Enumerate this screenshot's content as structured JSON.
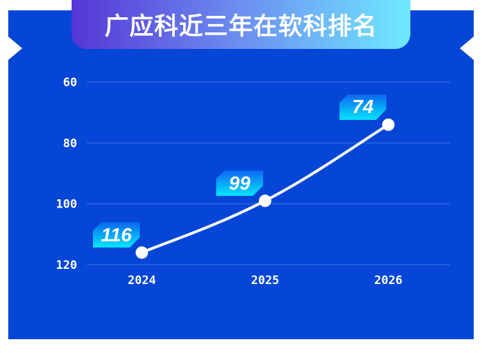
{
  "title": "广应科近三年在软科排名",
  "colors": {
    "panel": "#0546d6",
    "line": "#ffffff",
    "grid": "#2a66e0",
    "tag_top": "#0a66f2",
    "tag_bottom": "#08e6fb"
  },
  "chart_data": {
    "type": "line",
    "title": "广应科近三年在软科排名",
    "categories": [
      "2024",
      "2025",
      "2026"
    ],
    "values": [
      116,
      99,
      74
    ],
    "ylim": [
      120,
      60
    ],
    "y_inverted": true,
    "yticks": [
      "60",
      "80",
      "100",
      "120"
    ],
    "ytick_values": [
      60,
      80,
      100,
      120
    ],
    "grid": true,
    "data_labels": [
      "116",
      "99",
      "74"
    ]
  }
}
